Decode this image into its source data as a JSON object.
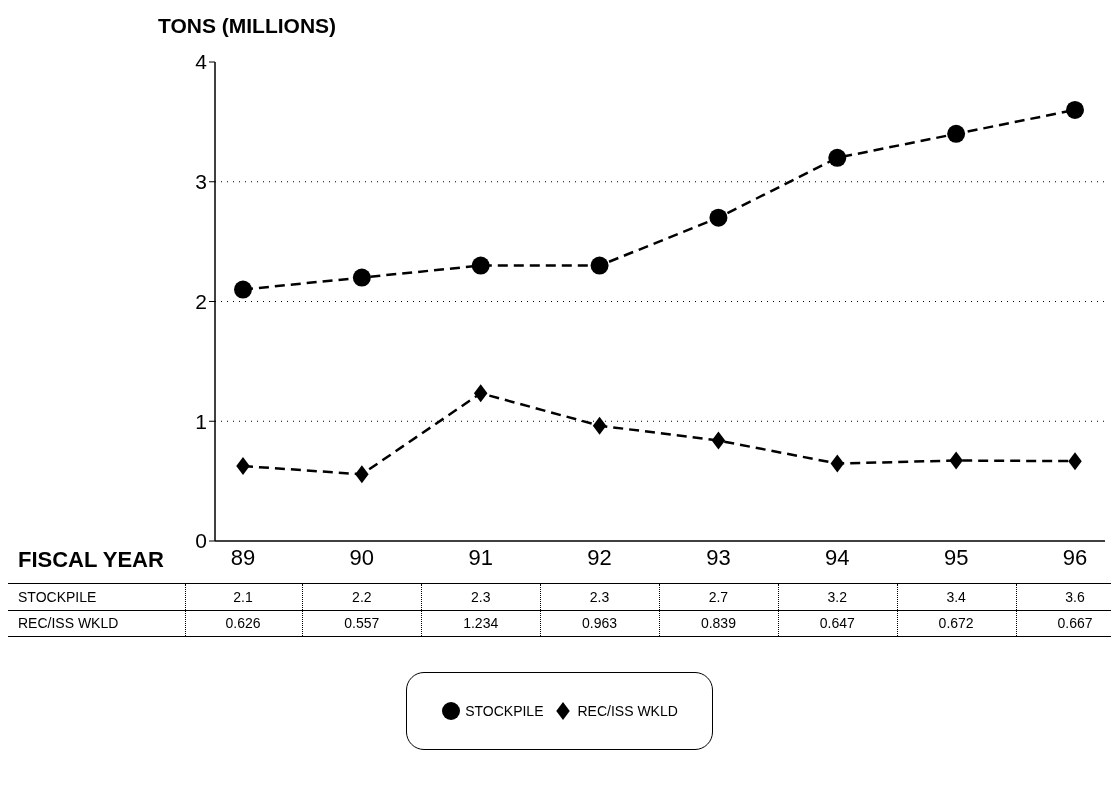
{
  "chart_data": {
    "type": "line",
    "ylabel": "TONS (MILLIONS)",
    "xlabel": "FISCAL YEAR",
    "categories": [
      "89",
      "90",
      "91",
      "92",
      "93",
      "94",
      "95",
      "96"
    ],
    "series": [
      {
        "name": "STOCKPILE",
        "color": "#000000",
        "marker": "circle",
        "values": [
          2.1,
          2.2,
          2.3,
          2.3,
          2.7,
          3.2,
          3.4,
          3.6
        ]
      },
      {
        "name": "REC/ISS WKLD",
        "color": "#000000",
        "marker": "diamond",
        "values": [
          0.626,
          0.557,
          1.234,
          0.963,
          0.839,
          0.647,
          0.672,
          0.667
        ]
      }
    ],
    "ylim": [
      0,
      4
    ],
    "yticks": [
      0,
      1,
      2,
      3,
      4
    ],
    "grid": "y",
    "legend": "bottom",
    "line_style": "dashed",
    "data_labels": true
  }
}
